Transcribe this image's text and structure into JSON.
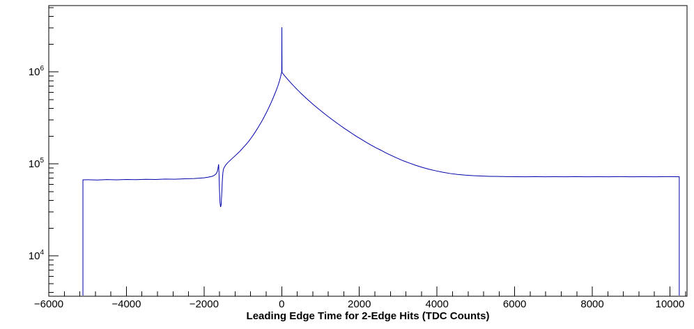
{
  "window": {
    "title": "Leading Edge Time for 2-Edge Hits (TDC Counts)"
  },
  "chart_data": {
    "type": "line",
    "title": "",
    "xlabel": "Leading Edge Time for 2-Edge Hits (TDC Counts)",
    "ylabel": "",
    "xlim": [
      -6000,
      10440
    ],
    "ylim": [
      3640,
      5250000
    ],
    "yscale": "log",
    "grid": false,
    "legend": "none",
    "line_color": "#0000aa",
    "axis_color": "#000000",
    "background_color": "#ffffff",
    "x_axis": {
      "title": "Leading Edge Time for 2-Edge Hits (TDC Counts)",
      "minor_step": 400,
      "ticks": [
        {
          "value": -6000,
          "label": "−6000"
        },
        {
          "value": -4000,
          "label": "−4000"
        },
        {
          "value": -2000,
          "label": "−2000"
        },
        {
          "value": 0,
          "label": "0"
        },
        {
          "value": 2000,
          "label": "2000"
        },
        {
          "value": 4000,
          "label": "4000"
        },
        {
          "value": 6000,
          "label": "6000"
        },
        {
          "value": 8000,
          "label": "8000"
        },
        {
          "value": 10000,
          "label": "10000"
        }
      ]
    },
    "y_axis": {
      "scale": "log",
      "ticks": [
        {
          "value": 10000,
          "mantissa": "10",
          "exp": "4"
        },
        {
          "value": 100000,
          "mantissa": "10",
          "exp": "5"
        },
        {
          "value": 1000000,
          "mantissa": "10",
          "exp": "6"
        }
      ]
    },
    "series": [
      {
        "name": "leading-edge-time-histogram",
        "color": "#0000aa",
        "points": [
          [
            -5120,
            3700
          ],
          [
            -5120,
            67000
          ],
          [
            -5000,
            67200
          ],
          [
            -4750,
            66800
          ],
          [
            -4500,
            67400
          ],
          [
            -4250,
            67100
          ],
          [
            -4000,
            67600
          ],
          [
            -3750,
            67300
          ],
          [
            -3500,
            67900
          ],
          [
            -3250,
            67600
          ],
          [
            -3000,
            68300
          ],
          [
            -2750,
            68100
          ],
          [
            -2500,
            68800
          ],
          [
            -2250,
            69300
          ],
          [
            -2000,
            70500
          ],
          [
            -1900,
            71500
          ],
          [
            -1800,
            73000
          ],
          [
            -1750,
            74500
          ],
          [
            -1700,
            77000
          ],
          [
            -1660,
            82000
          ],
          [
            -1640,
            90000
          ],
          [
            -1625,
            99000
          ],
          [
            -1615,
            80000
          ],
          [
            -1605,
            55000
          ],
          [
            -1590,
            38000
          ],
          [
            -1575,
            34000
          ],
          [
            -1560,
            36000
          ],
          [
            -1545,
            47000
          ],
          [
            -1530,
            65000
          ],
          [
            -1515,
            80000
          ],
          [
            -1500,
            88000
          ],
          [
            -1470,
            93000
          ],
          [
            -1440,
            97500
          ],
          [
            -1400,
            102000
          ],
          [
            -1350,
            107000
          ],
          [
            -1300,
            112000
          ],
          [
            -1250,
            117000
          ],
          [
            -1200,
            122500
          ],
          [
            -1150,
            128000
          ],
          [
            -1100,
            134000
          ],
          [
            -1050,
            141000
          ],
          [
            -1000,
            149000
          ],
          [
            -950,
            157000
          ],
          [
            -900,
            166000
          ],
          [
            -850,
            176000
          ],
          [
            -800,
            188000
          ],
          [
            -750,
            201000
          ],
          [
            -700,
            216000
          ],
          [
            -650,
            233000
          ],
          [
            -600,
            252000
          ],
          [
            -550,
            273000
          ],
          [
            -500,
            297000
          ],
          [
            -450,
            325000
          ],
          [
            -400,
            357000
          ],
          [
            -350,
            394000
          ],
          [
            -300,
            437000
          ],
          [
            -250,
            487000
          ],
          [
            -200,
            546000
          ],
          [
            -150,
            616000
          ],
          [
            -100,
            700000
          ],
          [
            -60,
            790000
          ],
          [
            -30,
            880000
          ],
          [
            -10,
            960000
          ],
          [
            0,
            1000000
          ],
          [
            4,
            3050000
          ],
          [
            8,
            980000
          ],
          [
            20,
            970000
          ],
          [
            50,
            935000
          ],
          [
            100,
            882000
          ],
          [
            150,
            833000
          ],
          [
            200,
            788000
          ],
          [
            250,
            747000
          ],
          [
            300,
            709000
          ],
          [
            350,
            674000
          ],
          [
            400,
            641000
          ],
          [
            450,
            611000
          ],
          [
            500,
            582000
          ],
          [
            560,
            551000
          ],
          [
            620,
            522000
          ],
          [
            680,
            495000
          ],
          [
            740,
            470000
          ],
          [
            800,
            446000
          ],
          [
            870,
            421000
          ],
          [
            940,
            398000
          ],
          [
            1010,
            377000
          ],
          [
            1090,
            354000
          ],
          [
            1170,
            333000
          ],
          [
            1250,
            314000
          ],
          [
            1340,
            294000
          ],
          [
            1430,
            276000
          ],
          [
            1520,
            259000
          ],
          [
            1620,
            242000
          ],
          [
            1720,
            227000
          ],
          [
            1830,
            211000
          ],
          [
            1940,
            197000
          ],
          [
            2050,
            185000
          ],
          [
            2170,
            172000
          ],
          [
            2290,
            161000
          ],
          [
            2420,
            150000
          ],
          [
            2550,
            141000
          ],
          [
            2690,
            131000
          ],
          [
            2830,
            123000
          ],
          [
            2980,
            115000
          ],
          [
            3130,
            108000
          ],
          [
            3290,
            102000
          ],
          [
            3450,
            96500
          ],
          [
            3620,
            91500
          ],
          [
            3790,
            87500
          ],
          [
            3970,
            84000
          ],
          [
            4150,
            81000
          ],
          [
            4340,
            78500
          ],
          [
            4530,
            76800
          ],
          [
            4730,
            75400
          ],
          [
            4930,
            74400
          ],
          [
            5140,
            73700
          ],
          [
            5350,
            73200
          ],
          [
            5570,
            72900
          ],
          [
            5800,
            72700
          ],
          [
            6030,
            72500
          ],
          [
            6270,
            72400
          ],
          [
            6520,
            72600
          ],
          [
            6770,
            72300
          ],
          [
            7030,
            72500
          ],
          [
            7300,
            72400
          ],
          [
            7570,
            72600
          ],
          [
            7850,
            72300
          ],
          [
            8130,
            72500
          ],
          [
            8420,
            72400
          ],
          [
            8710,
            72600
          ],
          [
            9010,
            72300
          ],
          [
            9310,
            72500
          ],
          [
            9620,
            72400
          ],
          [
            9930,
            72600
          ],
          [
            10150,
            72500
          ],
          [
            10240,
            72400
          ],
          [
            10240,
            3700
          ]
        ]
      }
    ]
  }
}
